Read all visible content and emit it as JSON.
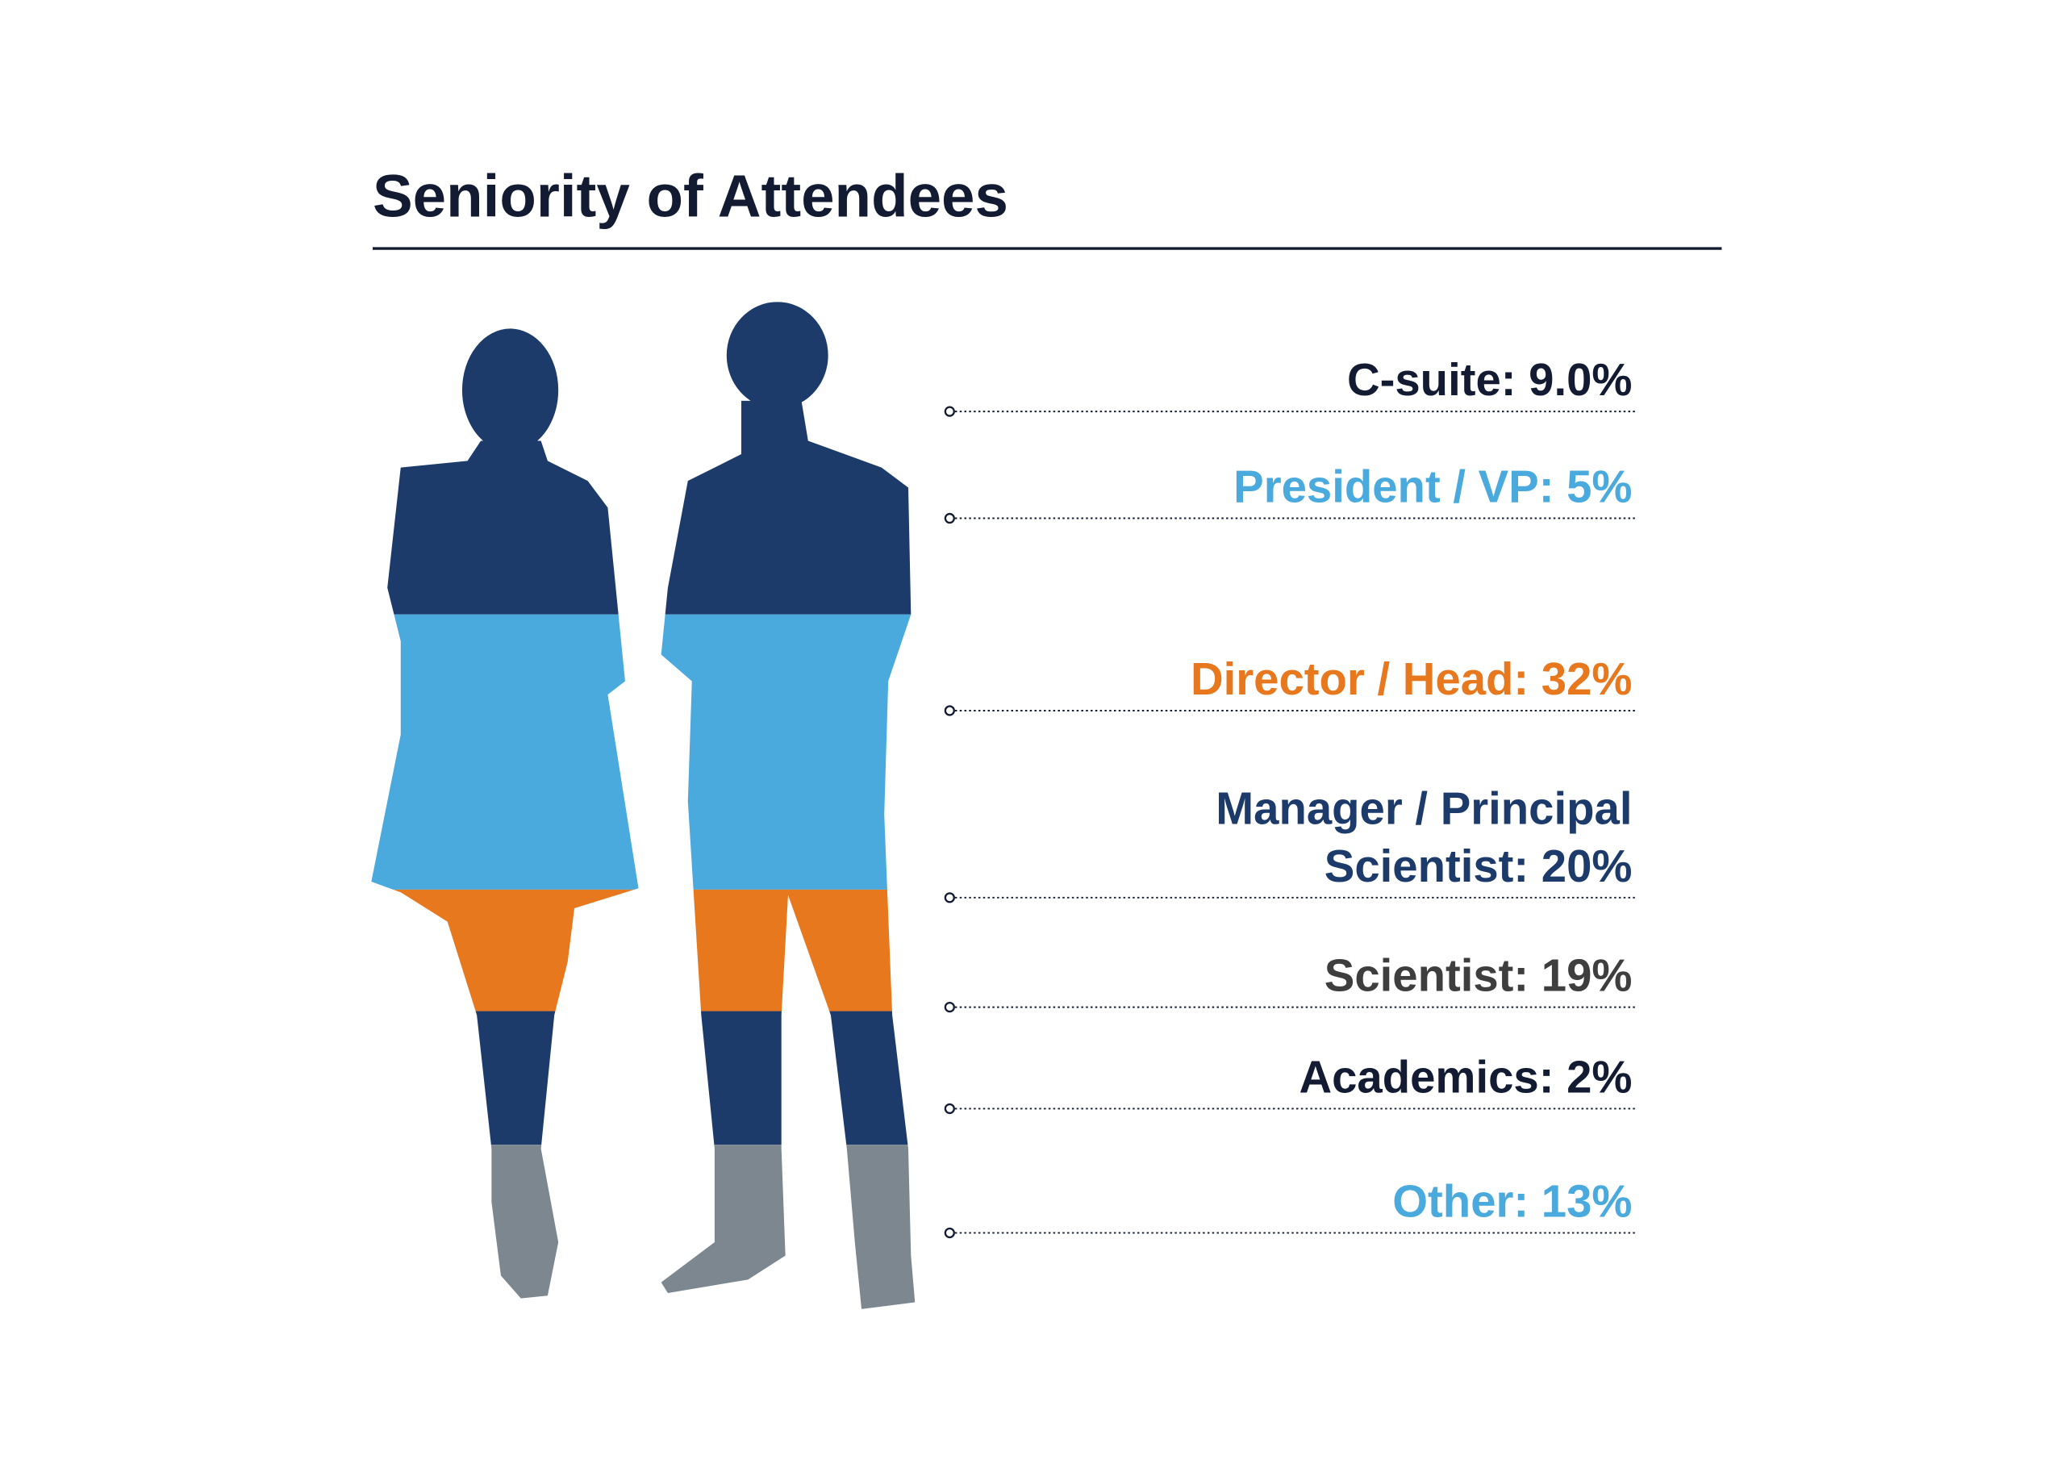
{
  "title": "Seniority of Attendees",
  "items": [
    {
      "lines": [
        "C-suite: 9.0%"
      ],
      "color": "#131b33"
    },
    {
      "lines": [
        "President / VP: 5%"
      ],
      "color": "#4aaade"
    },
    {
      "lines": [
        "Director / Head: 32%"
      ],
      "color": "#e8781e"
    },
    {
      "lines": [
        "Manager / Principal",
        "Scientist: 20%"
      ],
      "color": "#1c3b6b"
    },
    {
      "lines": [
        "Scientist: 19%"
      ],
      "color": "#3e3e3e"
    },
    {
      "lines": [
        "Academics: 2%"
      ],
      "color": "#131b33"
    },
    {
      "lines": [
        "Other: 13%"
      ],
      "color": "#4aaade"
    }
  ]
}
